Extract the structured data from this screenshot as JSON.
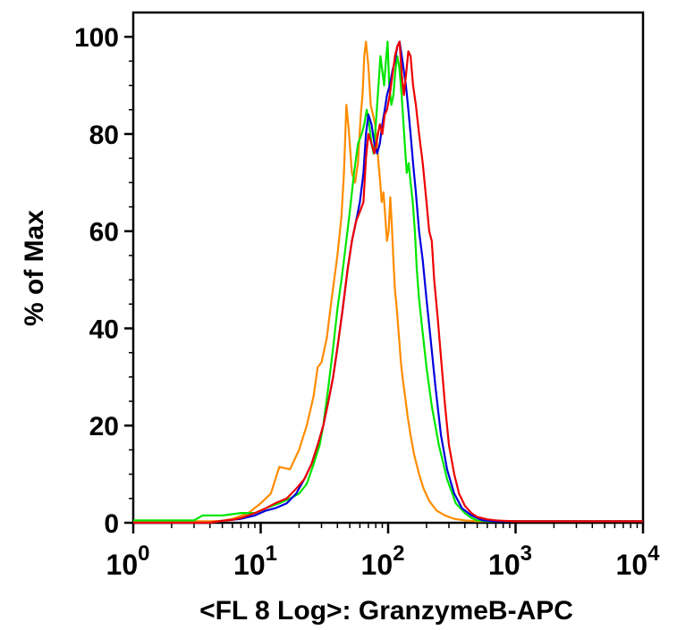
{
  "chart_data": {
    "type": "line",
    "title": "",
    "xlabel": "<FL 8 Log>: GranzymeB-APC",
    "ylabel": "% of Max",
    "x_scale": "log",
    "xlim": [
      1,
      10000
    ],
    "ylim": [
      0,
      105
    ],
    "x_ticks": [
      {
        "value": 1,
        "base": "10",
        "exp": "0"
      },
      {
        "value": 10,
        "base": "10",
        "exp": "1"
      },
      {
        "value": 100,
        "base": "10",
        "exp": "2"
      },
      {
        "value": 1000,
        "base": "10",
        "exp": "3"
      },
      {
        "value": 10000,
        "base": "10",
        "exp": "4"
      }
    ],
    "y_ticks": [
      "0",
      "20",
      "40",
      "60",
      "80",
      "100"
    ],
    "grid": false,
    "legend": "none",
    "series": [
      {
        "color": "#ff8c00",
        "x": [
          1,
          2,
          3,
          4,
          5,
          6,
          8,
          10,
          12,
          14,
          17,
          20,
          23,
          26,
          28,
          30,
          33,
          36,
          40,
          43,
          45,
          47,
          49,
          52,
          55,
          58,
          61,
          63,
          65,
          67,
          70,
          73,
          76,
          79,
          82,
          84,
          86,
          89,
          92,
          95,
          98,
          101,
          104,
          107,
          110,
          113,
          117,
          121,
          126,
          131,
          136,
          142,
          150,
          160,
          175,
          190,
          210,
          240,
          280,
          330,
          400,
          500,
          700,
          1000,
          10000
        ],
        "y": [
          0.3,
          0.3,
          0.3,
          0.3,
          0.4,
          0.8,
          2,
          4,
          6,
          11.5,
          11,
          15,
          20,
          26,
          32,
          33,
          38,
          46,
          55,
          63,
          72,
          86,
          81,
          72,
          70,
          74,
          84,
          88,
          96,
          99,
          94,
          86,
          84,
          82,
          78,
          74,
          71,
          66,
          68,
          63,
          58,
          60,
          67,
          61,
          54,
          48,
          44,
          39,
          33,
          29,
          26,
          22,
          18,
          14,
          10,
          7,
          4.5,
          2.5,
          1.5,
          0.8,
          0.5,
          0.3,
          0.3,
          0.3,
          0.3
        ]
      },
      {
        "color": "#00e600",
        "x": [
          1,
          2,
          3,
          3.5,
          5,
          7,
          9,
          11,
          14,
          17,
          20,
          23,
          26,
          29,
          31,
          34,
          37,
          40,
          43,
          46,
          50,
          54,
          58,
          62,
          65,
          68,
          71,
          74,
          77,
          80,
          84,
          87,
          90,
          93,
          96,
          99,
          102,
          106,
          110,
          114,
          118,
          122,
          126,
          130,
          135,
          140,
          145,
          150,
          156,
          162,
          168,
          175,
          185,
          200,
          220,
          250,
          290,
          340,
          400,
          450,
          500,
          600,
          700,
          1000,
          10000
        ],
        "y": [
          0.5,
          0.5,
          0.5,
          1.5,
          1.5,
          2,
          2,
          3,
          4,
          5,
          6,
          8,
          12,
          16,
          20,
          28,
          36,
          44,
          50,
          56,
          64,
          72,
          78,
          80,
          82,
          85,
          82,
          78,
          76,
          82,
          90,
          96,
          93,
          90,
          95,
          99,
          90,
          86,
          88,
          93,
          96,
          94,
          90,
          85,
          78,
          72,
          74,
          70,
          66,
          60,
          52,
          46,
          40,
          32,
          24,
          16,
          9,
          4,
          2,
          1,
          0.5,
          0.3,
          0.3,
          0.3,
          0.3
        ]
      },
      {
        "color": "#0000dd",
        "x": [
          1,
          4,
          5,
          6,
          7,
          9,
          11,
          13,
          16,
          19,
          22,
          25,
          28,
          31,
          34,
          37,
          40,
          44,
          48,
          52,
          56,
          60,
          64,
          67,
          70,
          74,
          78,
          82,
          86,
          90,
          94,
          98,
          103,
          108,
          113,
          118,
          123,
          128,
          133,
          138,
          144,
          150,
          157,
          165,
          175,
          187,
          200,
          215,
          235,
          260,
          290,
          330,
          380,
          450,
          550,
          700,
          1000,
          10000
        ],
        "y": [
          0,
          0,
          0.4,
          0.6,
          0.8,
          1.5,
          2.5,
          3,
          4,
          6,
          9,
          12,
          16,
          20,
          25,
          30,
          36,
          44,
          52,
          58,
          62,
          66,
          72,
          80,
          84,
          82,
          78,
          76,
          78,
          82,
          85,
          88,
          90,
          93,
          95,
          98,
          99,
          96,
          93,
          90,
          85,
          80,
          74,
          68,
          60,
          54,
          46,
          38,
          28,
          18,
          11,
          6,
          3,
          1.5,
          0.5,
          0.3,
          0.3,
          0.3
        ]
      },
      {
        "color": "#ee0000",
        "x": [
          1,
          4,
          5,
          6,
          7,
          9,
          11,
          13,
          16,
          19,
          22,
          25,
          28,
          31,
          34,
          37,
          40,
          44,
          48,
          52,
          56,
          60,
          64,
          67,
          70,
          74,
          78,
          82,
          86,
          90,
          94,
          98,
          103,
          108,
          113,
          118,
          123,
          128,
          133,
          138,
          144,
          150,
          157,
          165,
          175,
          187,
          200,
          210,
          220,
          230,
          245,
          260,
          280,
          300,
          330,
          360,
          400,
          450,
          500,
          600,
          700,
          800,
          1000,
          10000
        ],
        "y": [
          0,
          0,
          0.4,
          0.6,
          1,
          2,
          3,
          4,
          5,
          7,
          9,
          12,
          16,
          20,
          25,
          30,
          36,
          44,
          52,
          58,
          62,
          64,
          66,
          75,
          80,
          78,
          76,
          79,
          82,
          80,
          84,
          85,
          88,
          92,
          96,
          98,
          99,
          92,
          88,
          92,
          97,
          96,
          90,
          86,
          80,
          74,
          66,
          60,
          58,
          50,
          42,
          34,
          24,
          16,
          10,
          6,
          3.5,
          2,
          1.2,
          0.7,
          0.5,
          0.4,
          0.3,
          0.3
        ]
      }
    ]
  }
}
